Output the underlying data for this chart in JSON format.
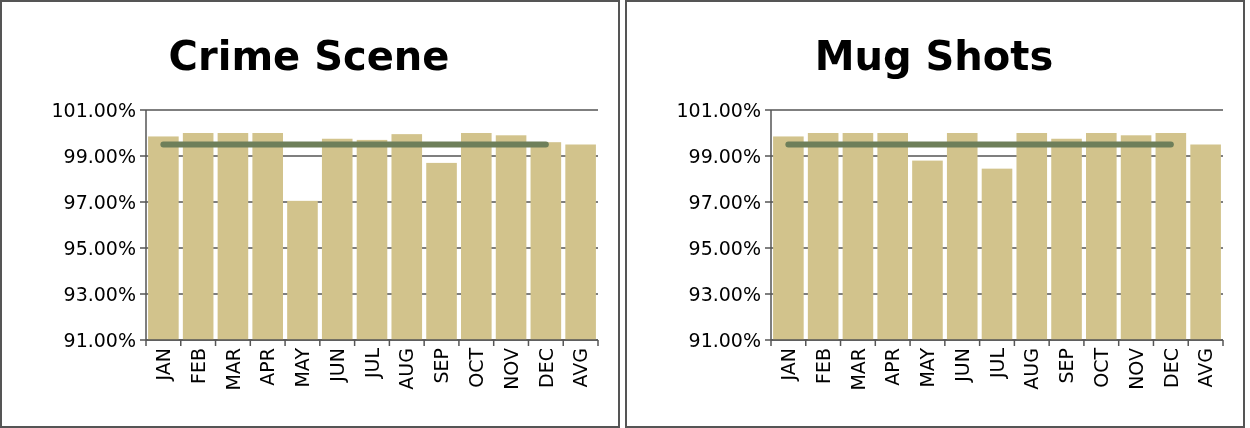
{
  "chart_data": [
    {
      "type": "bar",
      "title": "Crime Scene",
      "categories": [
        "JAN",
        "FEB",
        "MAR",
        "APR",
        "MAY",
        "JUN",
        "JUL",
        "AUG",
        "SEP",
        "OCT",
        "NOV",
        "DEC",
        "AVG"
      ],
      "series": [
        {
          "color": "#d2c38c",
          "values": [
            99.85,
            100,
            100,
            100,
            97.05,
            99.75,
            99.7,
            99.95,
            98.7,
            100,
            99.9,
            99.6,
            99.5
          ]
        },
        {
          "type": "line",
          "color": "#6e7f5a",
          "values": [
            99.5,
            99.5,
            99.5,
            99.5,
            99.5,
            99.5,
            99.5,
            99.5,
            99.5,
            99.5,
            99.5,
            99.5,
            null
          ]
        }
      ],
      "ylim": [
        91,
        101
      ],
      "yticks": [
        {
          "value": 91,
          "label": "91.00%"
        },
        {
          "value": 93,
          "label": "93.00%"
        },
        {
          "value": 95,
          "label": "95.00%"
        },
        {
          "value": 97,
          "label": "97.00%"
        },
        {
          "value": 99,
          "label": "99.00%"
        },
        {
          "value": 101,
          "label": "101.00%"
        }
      ],
      "grid": "y"
    },
    {
      "type": "bar",
      "title": "Mug Shots",
      "categories": [
        "JAN",
        "FEB",
        "MAR",
        "APR",
        "MAY",
        "JUN",
        "JUL",
        "AUG",
        "SEP",
        "OCT",
        "NOV",
        "DEC",
        "AVG"
      ],
      "series": [
        {
          "color": "#d2c38c",
          "values": [
            99.85,
            100,
            100,
            100,
            98.8,
            100,
            98.45,
            100,
            99.75,
            100,
            99.9,
            100,
            99.5
          ]
        },
        {
          "type": "line",
          "color": "#6e7f5a",
          "values": [
            99.5,
            99.5,
            99.5,
            99.5,
            99.5,
            99.5,
            99.5,
            99.5,
            99.5,
            99.5,
            99.5,
            99.5,
            null
          ]
        }
      ],
      "ylim": [
        91,
        101
      ],
      "yticks": [
        {
          "value": 91,
          "label": "91.00%"
        },
        {
          "value": 93,
          "label": "93.00%"
        },
        {
          "value": 95,
          "label": "95.00%"
        },
        {
          "value": 97,
          "label": "97.00%"
        },
        {
          "value": 99,
          "label": "99.00%"
        },
        {
          "value": 101,
          "label": "101.00%"
        }
      ],
      "grid": "y"
    }
  ]
}
